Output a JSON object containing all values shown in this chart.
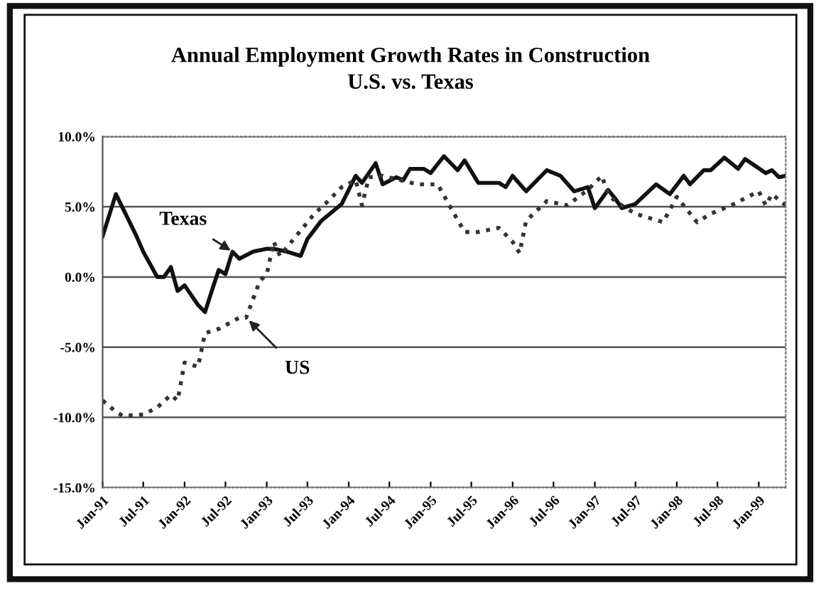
{
  "chart_data": {
    "type": "line",
    "title": "Annual Employment Growth Rates in Construction",
    "subtitle": "U.S. vs. Texas",
    "xlim": [
      "1991-01",
      "1999-05"
    ],
    "ylim": [
      -15,
      10
    ],
    "xticks": [
      {
        "value": "1991-01",
        "label": "Jan-91"
      },
      {
        "value": "1991-07",
        "label": "Jul-91"
      },
      {
        "value": "1992-01",
        "label": "Jan-92"
      },
      {
        "value": "1992-07",
        "label": "Jul-92"
      },
      {
        "value": "1993-01",
        "label": "Jan-93"
      },
      {
        "value": "1993-07",
        "label": "Jul-93"
      },
      {
        "value": "1994-01",
        "label": "Jan-94"
      },
      {
        "value": "1994-07",
        "label": "Jul-94"
      },
      {
        "value": "1995-01",
        "label": "Jan-95"
      },
      {
        "value": "1995-07",
        "label": "Jul-95"
      },
      {
        "value": "1996-01",
        "label": "Jan-96"
      },
      {
        "value": "1996-07",
        "label": "Jul-96"
      },
      {
        "value": "1997-01",
        "label": "Jan-97"
      },
      {
        "value": "1997-07",
        "label": "Jul-97"
      },
      {
        "value": "1998-01",
        "label": "Jan-98"
      },
      {
        "value": "1998-07",
        "label": "Jul-98"
      },
      {
        "value": "1999-01",
        "label": "Jan-99"
      }
    ],
    "yticks": [
      {
        "value": 10,
        "label": "10.0%"
      },
      {
        "value": 5,
        "label": "5.0%"
      },
      {
        "value": 0,
        "label": "0.0%"
      },
      {
        "value": -5,
        "label": "-5.0%"
      },
      {
        "value": -10,
        "label": "-10.0%"
      },
      {
        "value": -15,
        "label": "-15.0%"
      }
    ],
    "grid": "y",
    "legend": false,
    "series": [
      {
        "color": "#111111",
        "line_style": "solid",
        "x": [
          "1991-01",
          "1991-03",
          "1991-06",
          "1991-07",
          "1991-09",
          "1991-10",
          "1991-11",
          "1991-12",
          "1992-01",
          "1992-03",
          "1992-04",
          "1992-05",
          "1992-06",
          "1992-07",
          "1992-08",
          "1992-09",
          "1992-11",
          "1993-01",
          "1993-02",
          "1993-04",
          "1993-06",
          "1993-07",
          "1993-09",
          "1993-12",
          "1994-02",
          "1994-03",
          "1994-05",
          "1994-06",
          "1994-08",
          "1994-09",
          "1994-10",
          "1994-12",
          "1995-01",
          "1995-03",
          "1995-05",
          "1995-06",
          "1995-08",
          "1995-11",
          "1995-12",
          "1996-01",
          "1996-03",
          "1996-06",
          "1996-08",
          "1996-10",
          "1996-12",
          "1997-01",
          "1997-03",
          "1997-04",
          "1997-05",
          "1997-07",
          "1997-10",
          "1997-12",
          "1998-02",
          "1998-03",
          "1998-05",
          "1998-06",
          "1998-08",
          "1998-10",
          "1998-11",
          "1999-02",
          "1999-03",
          "1999-04",
          "1999-05"
        ],
        "values": [
          2.9,
          5.9,
          2.9,
          1.8,
          0.0,
          0.0,
          0.7,
          -1.0,
          -0.6,
          -2.0,
          -2.5,
          -1.0,
          0.5,
          0.2,
          1.8,
          1.3,
          1.8,
          2.0,
          2.0,
          1.8,
          1.5,
          2.7,
          4.0,
          5.2,
          7.2,
          6.7,
          8.1,
          6.6,
          7.1,
          6.9,
          7.7,
          7.7,
          7.4,
          8.6,
          7.6,
          8.3,
          6.7,
          6.7,
          6.4,
          7.2,
          6.1,
          7.6,
          7.2,
          6.1,
          6.4,
          4.9,
          6.2,
          5.6,
          4.9,
          5.2,
          6.6,
          5.9,
          7.2,
          6.6,
          7.6,
          7.6,
          8.5,
          7.7,
          8.4,
          7.4,
          7.6,
          7.1,
          7.2
        ]
      },
      {
        "color": "#333333",
        "line_style": "dotted",
        "x": [
          "1991-01",
          "1991-03",
          "1991-04",
          "1991-07",
          "1991-09",
          "1991-11",
          "1991-12",
          "1992-01",
          "1992-03",
          "1992-04",
          "1992-06",
          "1992-09",
          "1992-10",
          "1992-12",
          "1993-01",
          "1993-02",
          "1993-03",
          "1993-05",
          "1993-08",
          "1993-10",
          "1993-12",
          "1994-02",
          "1994-03",
          "1994-04",
          "1994-06",
          "1994-11",
          "1995-02",
          "1995-04",
          "1995-06",
          "1995-08",
          "1995-11",
          "1996-01",
          "1996-02",
          "1996-03",
          "1996-06",
          "1996-09",
          "1996-12",
          "1997-02",
          "1997-03",
          "1997-04",
          "1997-07",
          "1997-11",
          "1998-01",
          "1998-04",
          "1998-06",
          "1998-09",
          "1999-01",
          "1999-02",
          "1999-03",
          "1999-05"
        ],
        "values": [
          -8.8,
          -9.6,
          -9.9,
          -9.8,
          -9.3,
          -8.4,
          -8.8,
          -6.1,
          -6.4,
          -4.0,
          -3.7,
          -2.9,
          -2.9,
          -0.3,
          0.2,
          2.5,
          1.5,
          2.7,
          4.5,
          5.4,
          6.4,
          6.9,
          5.1,
          7.1,
          7.2,
          6.6,
          6.6,
          4.9,
          3.2,
          3.2,
          3.5,
          2.5,
          1.7,
          4.0,
          5.4,
          5.1,
          6.2,
          7.2,
          5.9,
          5.4,
          4.5,
          3.9,
          5.7,
          3.9,
          4.5,
          5.1,
          6.1,
          5.1,
          5.9,
          5.1
        ]
      }
    ],
    "annotations": [
      {
        "text": "Texas",
        "x": "1992-08",
        "y": 1.8
      },
      {
        "text": "US",
        "x": "1992-10",
        "y": -2.9
      }
    ]
  }
}
